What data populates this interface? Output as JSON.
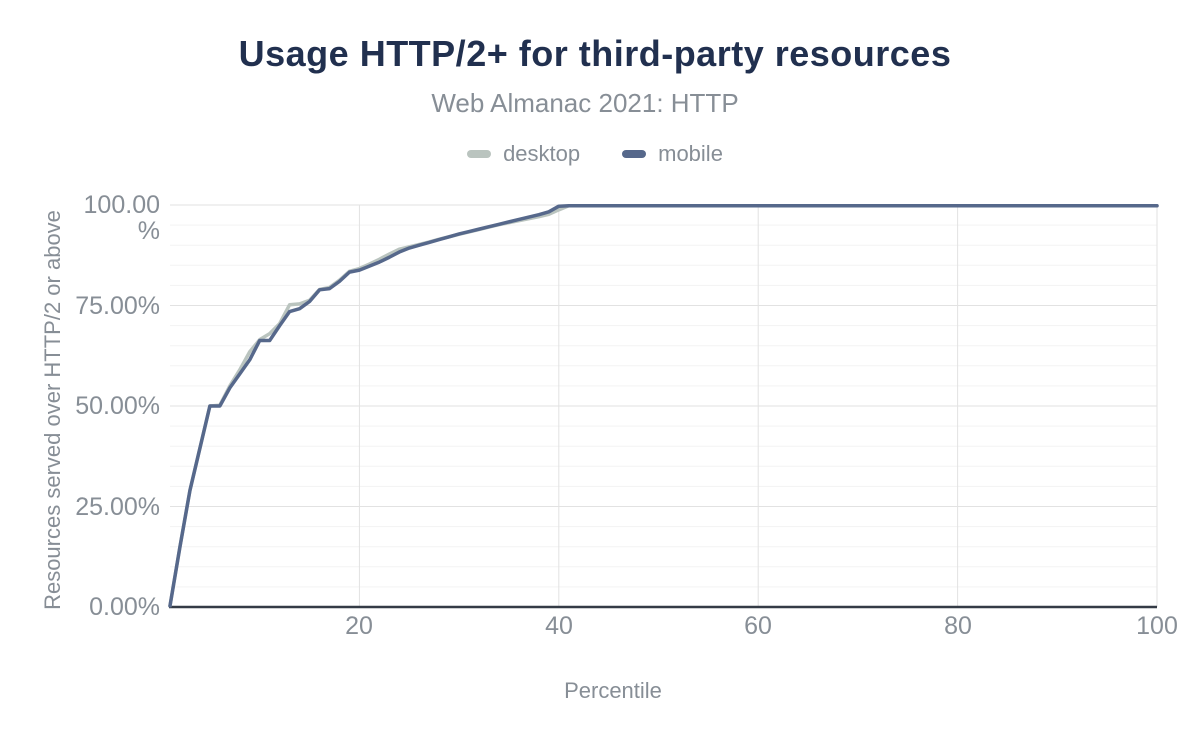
{
  "chart_data": {
    "type": "line",
    "title": "Usage HTTP/2+ for third-party resources",
    "subtitle": "Web Almanac 2021: HTTP",
    "xlabel": "Percentile",
    "ylabel": "Resources served over HTTP/2 or above",
    "x_min": 1,
    "x_max": 100,
    "ylim": [
      0,
      100
    ],
    "x_ticks": [
      20,
      40,
      60,
      80,
      100
    ],
    "x_tick_labels": [
      "20",
      "40",
      "60",
      "80",
      "100"
    ],
    "y_ticks": [
      100,
      75,
      50,
      25,
      0
    ],
    "y_tick_labels": [
      "100.00\n%",
      "75.00%",
      "50.00%",
      "25.00%",
      "0.00%"
    ],
    "y_minor_grid_step": 5,
    "grid": "on",
    "legend_position": "top-center",
    "axis_line_color": "#343b46",
    "percentiles": [
      1,
      2,
      3,
      4,
      5,
      6,
      7,
      8,
      9,
      10,
      11,
      12,
      13,
      14,
      15,
      16,
      17,
      18,
      19,
      20,
      21,
      22,
      23,
      24,
      25,
      26,
      27,
      28,
      29,
      30,
      31,
      32,
      33,
      34,
      35,
      36,
      37,
      38,
      39,
      40,
      41,
      42,
      43,
      44,
      45,
      46,
      47,
      48,
      49,
      50,
      51,
      52,
      53,
      54,
      55,
      56,
      57,
      58,
      59,
      60,
      61,
      62,
      63,
      64,
      65,
      66,
      67,
      68,
      69,
      70,
      71,
      72,
      73,
      74,
      75,
      76,
      77,
      78,
      79,
      80,
      81,
      82,
      83,
      84,
      85,
      86,
      87,
      88,
      89,
      90,
      91,
      92,
      93,
      94,
      95,
      96,
      97,
      98,
      99,
      100
    ],
    "series": [
      {
        "name": "desktop",
        "color": "#bac4bf",
        "values": [
          0.3,
          15,
          29,
          39.5,
          50,
          50.2,
          55,
          59,
          63.5,
          66.5,
          68,
          70.5,
          75.2,
          75.4,
          76.3,
          79,
          79.5,
          81.3,
          83.5,
          84.2,
          85.3,
          86.5,
          87.8,
          89,
          89.6,
          90.2,
          90.8,
          91.5,
          92.1,
          92.7,
          93.3,
          93.9,
          94.5,
          95.1,
          95.6,
          96.1,
          96.6,
          97.1,
          97.7,
          98.8,
          99.8,
          99.8,
          99.8,
          99.8,
          99.8,
          99.8,
          99.8,
          99.8,
          99.8,
          99.8,
          99.8,
          99.8,
          99.8,
          99.8,
          99.8,
          99.8,
          99.8,
          99.8,
          99.8,
          99.8,
          99.8,
          99.8,
          99.8,
          99.8,
          99.8,
          99.8,
          99.8,
          99.8,
          99.8,
          99.8,
          99.8,
          99.8,
          99.8,
          99.8,
          99.8,
          99.8,
          99.8,
          99.8,
          99.8,
          99.8,
          99.8,
          99.8,
          99.8,
          99.8,
          99.8,
          99.8,
          99.8,
          99.8,
          99.8,
          99.8,
          99.8,
          99.8,
          99.8,
          99.8,
          99.8,
          99.8,
          99.8,
          99.8,
          99.8,
          99.8
        ]
      },
      {
        "name": "mobile",
        "color": "#56688b",
        "values": [
          0.3,
          15,
          29,
          39.5,
          50,
          50,
          54.5,
          58,
          61.5,
          66.3,
          66.3,
          70,
          73.5,
          74.2,
          76,
          78.9,
          79.2,
          81,
          83.3,
          83.8,
          84.8,
          85.8,
          87,
          88.3,
          89.3,
          90,
          90.7,
          91.4,
          92.1,
          92.8,
          93.4,
          94,
          94.6,
          95.2,
          95.8,
          96.4,
          97,
          97.6,
          98.3,
          99.7,
          99.8,
          99.8,
          99.8,
          99.8,
          99.8,
          99.8,
          99.8,
          99.8,
          99.8,
          99.8,
          99.8,
          99.8,
          99.8,
          99.8,
          99.8,
          99.8,
          99.8,
          99.8,
          99.8,
          99.8,
          99.8,
          99.8,
          99.8,
          99.8,
          99.8,
          99.8,
          99.8,
          99.8,
          99.8,
          99.8,
          99.8,
          99.8,
          99.8,
          99.8,
          99.8,
          99.8,
          99.8,
          99.8,
          99.8,
          99.8,
          99.8,
          99.8,
          99.8,
          99.8,
          99.8,
          99.8,
          99.8,
          99.8,
          99.8,
          99.8,
          99.8,
          99.8,
          99.8,
          99.8,
          99.8,
          99.8,
          99.8,
          99.8,
          99.8,
          99.8
        ]
      }
    ]
  }
}
